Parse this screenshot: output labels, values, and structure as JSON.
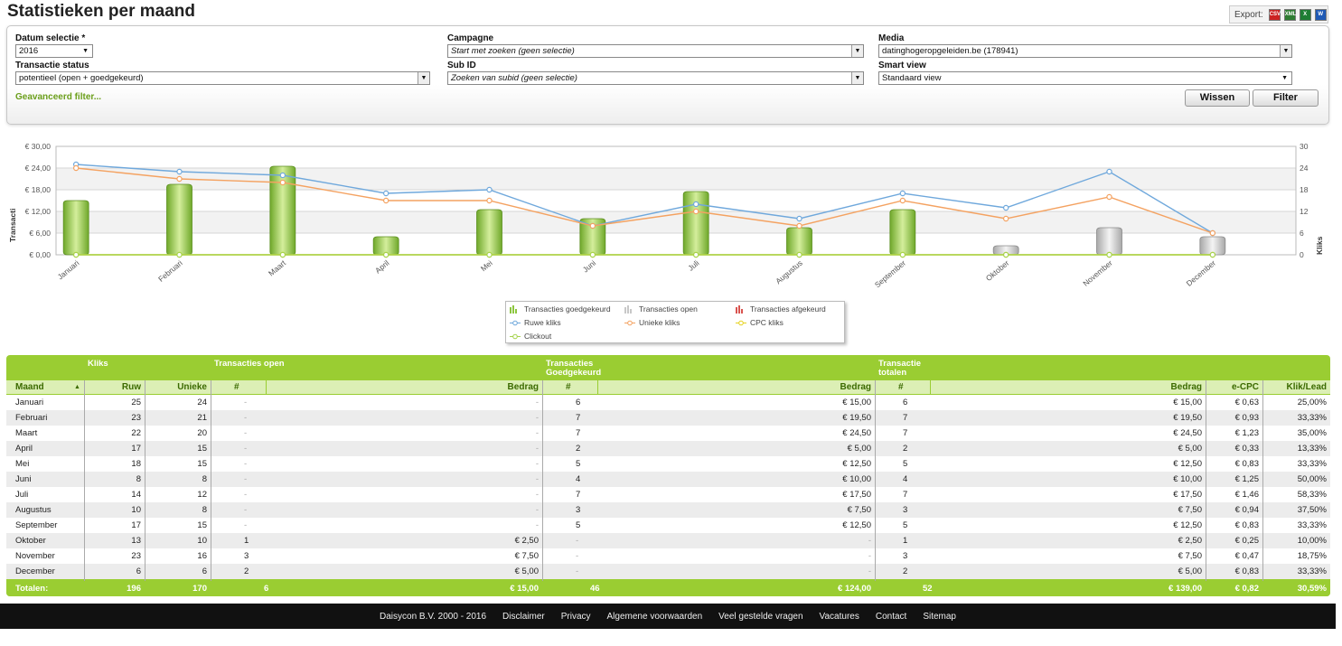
{
  "title": "Statistieken per maand",
  "export": {
    "label": "Export:",
    "formats": [
      {
        "name": "csv",
        "text": "CSV",
        "color": "#cc2222"
      },
      {
        "name": "xml",
        "text": "XML",
        "color": "#2e7d32"
      },
      {
        "name": "xls",
        "text": "X",
        "color": "#1e7e34"
      },
      {
        "name": "doc",
        "text": "W",
        "color": "#1f5ab5"
      }
    ]
  },
  "filters": {
    "datum_label": "Datum selectie *",
    "datum_value": "2016",
    "campagne_label": "Campagne",
    "campagne_value": "Start met zoeken (geen selectie)",
    "media_label": "Media",
    "media_value": "datinghogeropgeleiden.be (178941)",
    "transactie_label": "Transactie status",
    "transactie_value": "potentieel (open + goedgekeurd)",
    "subid_label": "Sub ID",
    "subid_value": "Zoeken van subid (geen selectie)",
    "smart_label": "Smart view",
    "smart_value": "Standaard view",
    "advanced_link": "Geavanceerd filter...",
    "clear_button": "Wissen",
    "filter_button": "Filter"
  },
  "chart_data": {
    "type": "bar",
    "categories": [
      "Januari",
      "Februari",
      "Maart",
      "April",
      "Mei",
      "Juni",
      "Juli",
      "Augustus",
      "September",
      "Oktober",
      "November",
      "December"
    ],
    "left_axis": {
      "label": "Transacti",
      "ticks": [
        "€ 30,00",
        "€ 24,00",
        "€ 18,00",
        "€ 12,00",
        "€ 6,00",
        "€ 0,00"
      ],
      "range": [
        0,
        30
      ]
    },
    "right_axis": {
      "label": "Kliks",
      "ticks": [
        "30",
        "24",
        "18",
        "12",
        "6",
        "0"
      ],
      "range": [
        0,
        30
      ]
    },
    "series": [
      {
        "name": "Transacties goedgekeurd",
        "kind": "bar",
        "color": "#8dc63f",
        "values": [
          15,
          19.5,
          24.5,
          5,
          12.5,
          10,
          17.5,
          7.5,
          12.5,
          0,
          0,
          0
        ]
      },
      {
        "name": "Transacties open",
        "kind": "bar",
        "color": "#c8c8c8",
        "values": [
          0,
          0,
          0,
          0,
          0,
          0,
          0,
          0,
          0,
          2.5,
          7.5,
          5
        ]
      },
      {
        "name": "Transacties afgekeurd",
        "kind": "bar",
        "color": "#d9534f",
        "values": [
          0,
          0,
          0,
          0,
          0,
          0,
          0,
          0,
          0,
          0,
          0,
          0
        ]
      },
      {
        "name": "Ruwe kliks",
        "kind": "line",
        "color": "#6fa8dc",
        "values": [
          25,
          23,
          22,
          17,
          18,
          8,
          14,
          10,
          17,
          13,
          23,
          6
        ]
      },
      {
        "name": "Unieke kliks",
        "kind": "line",
        "color": "#f4a261",
        "values": [
          24,
          21,
          20,
          15,
          15,
          8,
          12,
          8,
          15,
          10,
          16,
          6
        ]
      },
      {
        "name": "CPC kliks",
        "kind": "line",
        "color": "#e6d21e",
        "values": [
          0,
          0,
          0,
          0,
          0,
          0,
          0,
          0,
          0,
          0,
          0,
          0
        ]
      },
      {
        "name": "Clickout",
        "kind": "line",
        "color": "#a6d34e",
        "values": [
          0,
          0,
          0,
          0,
          0,
          0,
          0,
          0,
          0,
          0,
          0,
          0
        ]
      }
    ]
  },
  "table": {
    "groups": {
      "kliks": "Kliks",
      "open": "Transacties open",
      "goed": "Transacties Goedgekeurd",
      "totalen": "Transactie totalen"
    },
    "headers": {
      "maand": "Maand",
      "ruw": "Ruw",
      "unieke": "Unieke",
      "open_count": "#",
      "open_bedrag": "Bedrag",
      "goed_count": "#",
      "goed_bedrag": "Bedrag",
      "tot_count": "#",
      "tot_bedrag": "Bedrag",
      "ecpc": "e-CPC",
      "kliklead": "Klik/Lead"
    },
    "rows": [
      {
        "maand": "Januari",
        "ruw": "25",
        "unieke": "24",
        "open_count": "-",
        "open_bedrag": "-",
        "goed_count": "6",
        "goed_bedrag": "€ 15,00",
        "tot_count": "6",
        "tot_bedrag": "€ 15,00",
        "ecpc": "€ 0,63",
        "kliklead": "25,00%"
      },
      {
        "maand": "Februari",
        "ruw": "23",
        "unieke": "21",
        "open_count": "-",
        "open_bedrag": "-",
        "goed_count": "7",
        "goed_bedrag": "€ 19,50",
        "tot_count": "7",
        "tot_bedrag": "€ 19,50",
        "ecpc": "€ 0,93",
        "kliklead": "33,33%"
      },
      {
        "maand": "Maart",
        "ruw": "22",
        "unieke": "20",
        "open_count": "-",
        "open_bedrag": "-",
        "goed_count": "7",
        "goed_bedrag": "€ 24,50",
        "tot_count": "7",
        "tot_bedrag": "€ 24,50",
        "ecpc": "€ 1,23",
        "kliklead": "35,00%"
      },
      {
        "maand": "April",
        "ruw": "17",
        "unieke": "15",
        "open_count": "-",
        "open_bedrag": "-",
        "goed_count": "2",
        "goed_bedrag": "€ 5,00",
        "tot_count": "2",
        "tot_bedrag": "€ 5,00",
        "ecpc": "€ 0,33",
        "kliklead": "13,33%"
      },
      {
        "maand": "Mei",
        "ruw": "18",
        "unieke": "15",
        "open_count": "-",
        "open_bedrag": "-",
        "goed_count": "5",
        "goed_bedrag": "€ 12,50",
        "tot_count": "5",
        "tot_bedrag": "€ 12,50",
        "ecpc": "€ 0,83",
        "kliklead": "33,33%"
      },
      {
        "maand": "Juni",
        "ruw": "8",
        "unieke": "8",
        "open_count": "-",
        "open_bedrag": "-",
        "goed_count": "4",
        "goed_bedrag": "€ 10,00",
        "tot_count": "4",
        "tot_bedrag": "€ 10,00",
        "ecpc": "€ 1,25",
        "kliklead": "50,00%"
      },
      {
        "maand": "Juli",
        "ruw": "14",
        "unieke": "12",
        "open_count": "-",
        "open_bedrag": "-",
        "goed_count": "7",
        "goed_bedrag": "€ 17,50",
        "tot_count": "7",
        "tot_bedrag": "€ 17,50",
        "ecpc": "€ 1,46",
        "kliklead": "58,33%"
      },
      {
        "maand": "Augustus",
        "ruw": "10",
        "unieke": "8",
        "open_count": "-",
        "open_bedrag": "-",
        "goed_count": "3",
        "goed_bedrag": "€ 7,50",
        "tot_count": "3",
        "tot_bedrag": "€ 7,50",
        "ecpc": "€ 0,94",
        "kliklead": "37,50%"
      },
      {
        "maand": "September",
        "ruw": "17",
        "unieke": "15",
        "open_count": "-",
        "open_bedrag": "-",
        "goed_count": "5",
        "goed_bedrag": "€ 12,50",
        "tot_count": "5",
        "tot_bedrag": "€ 12,50",
        "ecpc": "€ 0,83",
        "kliklead": "33,33%"
      },
      {
        "maand": "Oktober",
        "ruw": "13",
        "unieke": "10",
        "open_count": "1",
        "open_bedrag": "€ 2,50",
        "goed_count": "-",
        "goed_bedrag": "-",
        "tot_count": "1",
        "tot_bedrag": "€ 2,50",
        "ecpc": "€ 0,25",
        "kliklead": "10,00%"
      },
      {
        "maand": "November",
        "ruw": "23",
        "unieke": "16",
        "open_count": "3",
        "open_bedrag": "€ 7,50",
        "goed_count": "-",
        "goed_bedrag": "-",
        "tot_count": "3",
        "tot_bedrag": "€ 7,50",
        "ecpc": "€ 0,47",
        "kliklead": "18,75%"
      },
      {
        "maand": "December",
        "ruw": "6",
        "unieke": "6",
        "open_count": "2",
        "open_bedrag": "€ 5,00",
        "goed_count": "-",
        "goed_bedrag": "-",
        "tot_count": "2",
        "tot_bedrag": "€ 5,00",
        "ecpc": "€ 0,83",
        "kliklead": "33,33%"
      }
    ],
    "totals": {
      "maand": "Totalen:",
      "ruw": "196",
      "unieke": "170",
      "open_count": "6",
      "open_bedrag": "€ 15,00",
      "goed_count": "46",
      "goed_bedrag": "€ 124,00",
      "tot_count": "52",
      "tot_bedrag": "€ 139,00",
      "ecpc": "€ 0,82",
      "kliklead": "30,59%"
    }
  },
  "footer": {
    "links": [
      "Daisycon B.V. 2000 - 2016",
      "Disclaimer",
      "Privacy",
      "Algemene voorwaarden",
      "Veel gestelde vragen",
      "Vacatures",
      "Contact",
      "Sitemap"
    ]
  }
}
